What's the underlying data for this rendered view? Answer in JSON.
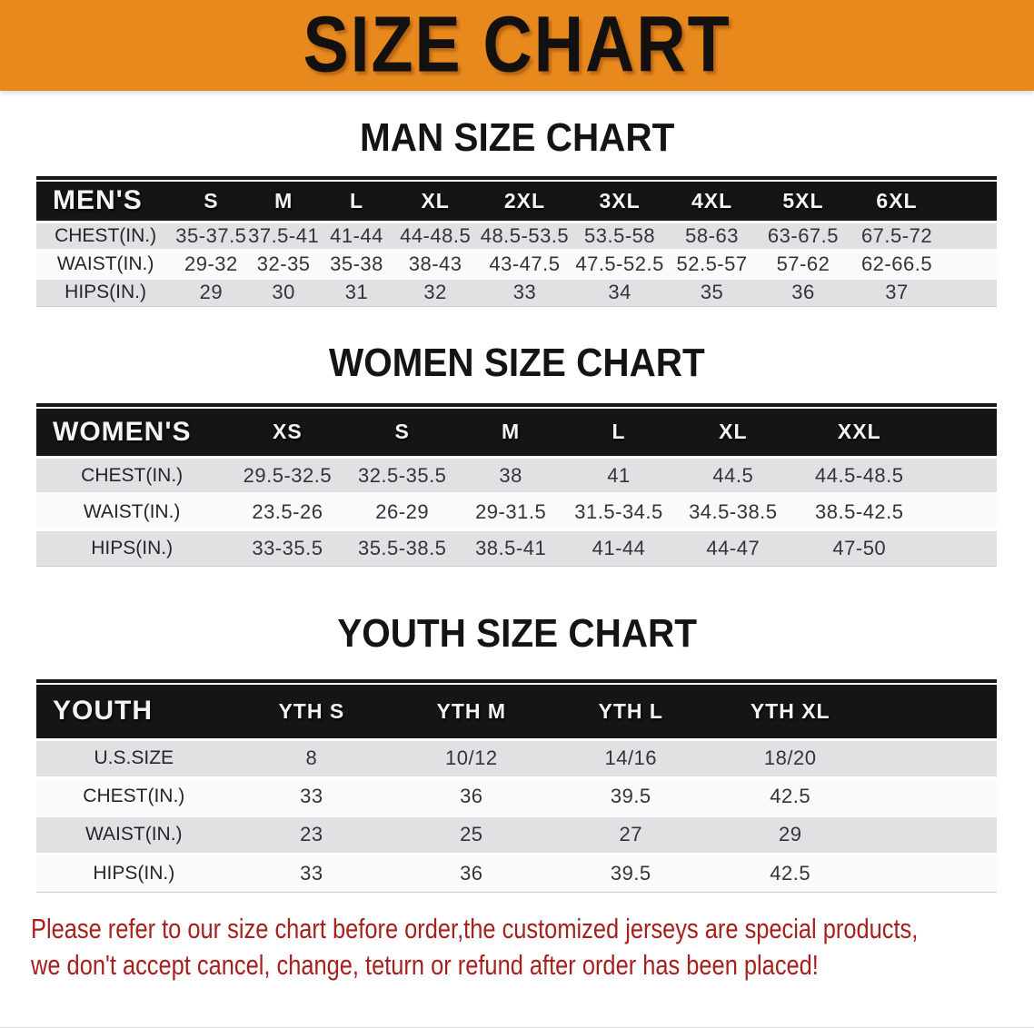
{
  "banner": {
    "title": "SIZE CHART",
    "bg_color": "#E8891E",
    "text_color": "#131110"
  },
  "sections": {
    "men": {
      "heading": "MAN SIZE CHART",
      "table": {
        "header_label": "MEN'S",
        "columns": [
          "S",
          "M",
          "L",
          "XL",
          "2XL",
          "3XL",
          "4XL",
          "5XL",
          "6XL"
        ],
        "rows": [
          {
            "label": "CHEST(IN.)",
            "values": [
              "35-37.5",
              "37.5-41",
              "41-44",
              "44-48.5",
              "48.5-53.5",
              "53.5-58",
              "58-63",
              "63-67.5",
              "67.5-72"
            ]
          },
          {
            "label": "WAIST(IN.)",
            "values": [
              "29-32",
              "32-35",
              "35-38",
              "38-43",
              "43-47.5",
              "47.5-52.5",
              "52.5-57",
              "57-62",
              "62-66.5"
            ]
          },
          {
            "label": "HIPS(IN.)",
            "values": [
              "29",
              "30",
              "31",
              "32",
              "33",
              "34",
              "35",
              "36",
              "37"
            ]
          }
        ]
      }
    },
    "women": {
      "heading": "WOMEN SIZE CHART",
      "table": {
        "header_label": "WOMEN'S",
        "columns": [
          "XS",
          "S",
          "M",
          "L",
          "XL",
          "XXL"
        ],
        "rows": [
          {
            "label": "CHEST(IN.)",
            "values": [
              "29.5-32.5",
              "32.5-35.5",
              "38",
              "41",
              "44.5",
              "44.5-48.5"
            ]
          },
          {
            "label": "WAIST(IN.)",
            "values": [
              "23.5-26",
              "26-29",
              "29-31.5",
              "31.5-34.5",
              "34.5-38.5",
              "38.5-42.5"
            ]
          },
          {
            "label": "HIPS(IN.)",
            "values": [
              "33-35.5",
              "35.5-38.5",
              "38.5-41",
              "41-44",
              "44-47",
              "47-50"
            ]
          }
        ]
      }
    },
    "youth": {
      "heading": "YOUTH SIZE CHART",
      "table": {
        "header_label": "YOUTH",
        "columns": [
          "YTH S",
          "YTH M",
          "YTH L",
          "YTH XL"
        ],
        "rows": [
          {
            "label": "U.S.SIZE",
            "values": [
              "8",
              "10/12",
              "14/16",
              "18/20"
            ]
          },
          {
            "label": "CHEST(IN.)",
            "values": [
              "33",
              "36",
              "39.5",
              "42.5"
            ]
          },
          {
            "label": "WAIST(IN.)",
            "values": [
              "23",
              "25",
              "27",
              "29"
            ]
          },
          {
            "label": "HIPS(IN.)",
            "values": [
              "33",
              "36",
              "39.5",
              "42.5"
            ]
          }
        ]
      }
    }
  },
  "disclaimer": {
    "line1": "Please refer to our size chart before order,the customized jerseys are special products,",
    "line2": "we don't accept cancel, change, teturn or refund after order has been placed!",
    "color": "#A6211E"
  },
  "colors": {
    "banner_orange": "#E8891E",
    "header_bar_black": "#151515",
    "row_gray": "#E1E1E3",
    "row_white": "#FAFAFB",
    "disclaimer_red": "#A6211E"
  }
}
